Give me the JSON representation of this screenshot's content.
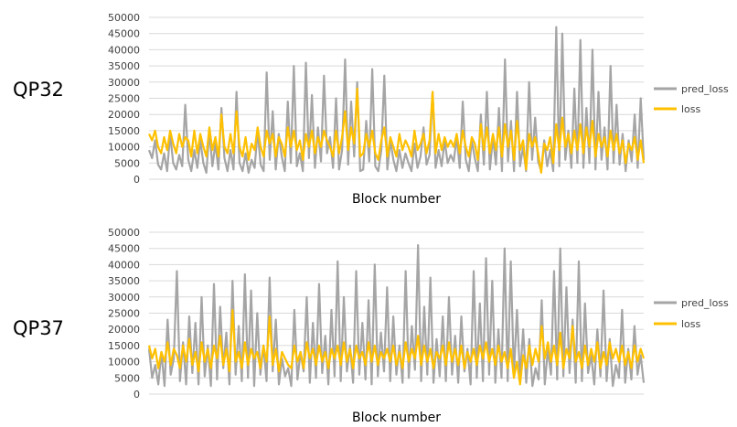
{
  "chart_data": [
    {
      "type": "line",
      "panel_label": "QP32",
      "title": "",
      "xlabel": "Block number",
      "ylabel": "",
      "ylim": [
        0,
        50000
      ],
      "yticks": [
        "0",
        "5000",
        "10000",
        "15000",
        "20000",
        "25000",
        "30000",
        "35000",
        "40000",
        "45000",
        "50000"
      ],
      "grid": true,
      "legend_position": "right",
      "series": [
        {
          "name": "pred_loss",
          "color": "#a5a5a5",
          "values": [
            9000,
            6500,
            12000,
            4500,
            3000,
            8000,
            2500,
            14000,
            5000,
            3000,
            7500,
            4000,
            23000,
            6000,
            2500,
            9000,
            3500,
            12000,
            5000,
            2000,
            15000,
            4000,
            11000,
            3000,
            22000,
            6500,
            2500,
            9000,
            3000,
            27000,
            5000,
            2500,
            8000,
            2000,
            6000,
            3500,
            15000,
            4500,
            2500,
            33000,
            6000,
            21000,
            3000,
            14000,
            7000,
            2500,
            24000,
            5000,
            35000,
            4000,
            8000,
            2500,
            36000,
            6500,
            26000,
            3500,
            16000,
            5500,
            32000,
            8000,
            13000,
            3500,
            25000,
            3000,
            9000,
            37000,
            4500,
            24000,
            7000,
            30000,
            2500,
            3000,
            18000,
            5500,
            34000,
            4000,
            2500,
            9000,
            32000,
            3000,
            12000,
            6000,
            2500,
            9000,
            3500,
            8000,
            5000,
            2500,
            11000,
            3500,
            7000,
            16000,
            4500,
            7500,
            27000,
            3500,
            9000,
            4000,
            12000,
            5000,
            7500,
            5500,
            13000,
            3500,
            24000,
            6000,
            2500,
            12000,
            6500,
            2500,
            20000,
            4500,
            27000,
            3000,
            13000,
            4500,
            22000,
            2500,
            37000,
            5500,
            18000,
            2500,
            27000,
            4000,
            10000,
            2500,
            30000,
            6000,
            19000,
            5500,
            2500,
            12000,
            4000,
            9000,
            2500,
            47000,
            4000,
            45000,
            6000,
            15000,
            3500,
            28000,
            5000,
            43000,
            3500,
            22000,
            5000,
            40000,
            3000,
            27000,
            6000,
            16000,
            3000,
            35000,
            5000,
            23000,
            4500,
            14000,
            2500,
            12000,
            5500,
            20000,
            3500,
            25000,
            6000
          ]
        },
        {
          "name": "loss",
          "color": "#ffc000",
          "values": [
            14000,
            12000,
            15000,
            10000,
            8000,
            13000,
            9000,
            15000,
            11000,
            8000,
            14000,
            10000,
            13000,
            12000,
            7000,
            15000,
            8000,
            14000,
            10000,
            7000,
            16000,
            9000,
            13000,
            7000,
            20000,
            10000,
            8000,
            14000,
            8000,
            21000,
            10000,
            7000,
            13000,
            6000,
            11000,
            9000,
            16000,
            10000,
            7000,
            15000,
            11000,
            14000,
            7000,
            13000,
            11000,
            7000,
            16000,
            10000,
            15000,
            9000,
            12000,
            6000,
            14000,
            10000,
            15000,
            8000,
            13000,
            10000,
            15000,
            12000,
            10000,
            7000,
            15000,
            8000,
            13000,
            21000,
            9000,
            16000,
            11000,
            28000,
            7000,
            8000,
            14000,
            10000,
            15000,
            8000,
            6000,
            12000,
            16000,
            7000,
            13000,
            10000,
            7000,
            14000,
            9000,
            12000,
            10000,
            7000,
            15000,
            9000,
            11000,
            14000,
            8000,
            12000,
            27000,
            8000,
            14000,
            9000,
            13000,
            10000,
            12000,
            10000,
            14000,
            8000,
            15000,
            10000,
            7000,
            13000,
            11000,
            6000,
            17000,
            9000,
            16000,
            8000,
            14000,
            9000,
            16000,
            7000,
            17000,
            10000,
            15000,
            6000,
            18000,
            9000,
            12000,
            3000,
            14000,
            10000,
            13000,
            8000,
            2000,
            11000,
            9000,
            13000,
            5000,
            17000,
            9000,
            19000,
            10000,
            14000,
            8000,
            15000,
            9000,
            17000,
            8000,
            16000,
            10000,
            18000,
            7000,
            14000,
            10000,
            13000,
            7000,
            15000,
            9000,
            14000,
            8000,
            12000,
            5000,
            11000,
            9000,
            13000,
            6000,
            12000,
            5000
          ]
        }
      ]
    },
    {
      "type": "line",
      "panel_label": "QP37",
      "title": "",
      "xlabel": "Block number",
      "ylabel": "",
      "ylim": [
        0,
        50000
      ],
      "yticks": [
        "0",
        "5000",
        "10000",
        "15000",
        "20000",
        "25000",
        "30000",
        "35000",
        "40000",
        "45000",
        "50000"
      ],
      "grid": true,
      "legend_position": "right",
      "series": [
        {
          "name": "pred_loss",
          "color": "#a5a5a5",
          "values": [
            14000,
            5000,
            9000,
            3000,
            13000,
            2500,
            23000,
            6000,
            11000,
            38000,
            4000,
            16000,
            3000,
            24000,
            6500,
            22000,
            3000,
            30000,
            5500,
            15000,
            2500,
            34000,
            4500,
            27000,
            8000,
            19000,
            3000,
            35000,
            6000,
            21000,
            4000,
            37000,
            5000,
            32000,
            2500,
            25000,
            6000,
            15000,
            4000,
            36000,
            7000,
            23000,
            3000,
            11000,
            5500,
            8000,
            2500,
            26000,
            4500,
            13000,
            7000,
            30000,
            3500,
            22000,
            5000,
            34000,
            6500,
            18000,
            3000,
            26000,
            5500,
            41000,
            4000,
            30000,
            7000,
            15000,
            3500,
            38000,
            6000,
            22000,
            4500,
            29000,
            3000,
            40000,
            5500,
            19000,
            7000,
            33000,
            4000,
            24000,
            6000,
            15000,
            3500,
            38000,
            5000,
            21000,
            7500,
            46000,
            4000,
            27000,
            6000,
            36000,
            3500,
            17000,
            5500,
            24000,
            4000,
            30000,
            6000,
            18000,
            3500,
            24000,
            7000,
            14000,
            3000,
            38000,
            5000,
            28000,
            4000,
            42000,
            6000,
            35000,
            3500,
            20000,
            5000,
            45000,
            4000,
            41000,
            6000,
            26000,
            5000,
            20000,
            3500,
            17000,
            2500,
            8000,
            4500,
            29000,
            3000,
            14000,
            6000,
            38000,
            4500,
            45000,
            5500,
            33000,
            6500,
            23000,
            3500,
            41000,
            4000,
            28000,
            6500,
            12000,
            3000,
            20000,
            5500,
            32000,
            4000,
            17000,
            2500,
            9000,
            5000,
            26000,
            3500,
            14000,
            4500,
            21000,
            6000,
            12000,
            3500
          ]
        },
        {
          "name": "loss",
          "color": "#ffc000",
          "values": [
            15000,
            11000,
            14000,
            8000,
            13000,
            10000,
            16000,
            9000,
            14000,
            12000,
            8000,
            15000,
            10000,
            17000,
            9000,
            13000,
            7000,
            16000,
            10000,
            14000,
            8000,
            15000,
            11000,
            18000,
            9000,
            14000,
            7000,
            26000,
            10000,
            13000,
            8000,
            16000,
            9000,
            14000,
            11000,
            13000,
            8000,
            15000,
            10000,
            24000,
            9000,
            14000,
            7000,
            13000,
            11000,
            9000,
            8000,
            15000,
            10000,
            13000,
            8000,
            16000,
            11000,
            14000,
            9000,
            15000,
            10000,
            13000,
            8000,
            14000,
            11000,
            15000,
            9000,
            16000,
            10000,
            14000,
            8000,
            15000,
            11000,
            13000,
            9000,
            16000,
            10000,
            15000,
            9000,
            13000,
            11000,
            14000,
            10000,
            15000,
            9000,
            13000,
            8000,
            16000,
            10000,
            14000,
            11000,
            18000,
            9000,
            15000,
            10000,
            14000,
            8000,
            13000,
            11000,
            15000,
            9000,
            16000,
            10000,
            14000,
            9000,
            15000,
            8000,
            13000,
            10000,
            14000,
            9000,
            15000,
            11000,
            16000,
            10000,
            14000,
            9000,
            15000,
            10000,
            13000,
            8000,
            14000,
            5000,
            10000,
            3000,
            12000,
            8000,
            15000,
            9000,
            14000,
            10000,
            21000,
            11000,
            16000,
            10000,
            15000,
            9000,
            19000,
            8000,
            14000,
            11000,
            21000,
            10000,
            13000,
            8000,
            15000,
            9000,
            14000,
            10000,
            16000,
            8000,
            13000,
            9000,
            16000,
            11000,
            14000,
            10000,
            15000,
            9000,
            13000,
            8000,
            15000,
            10000,
            14000,
            11000
          ]
        }
      ]
    }
  ]
}
